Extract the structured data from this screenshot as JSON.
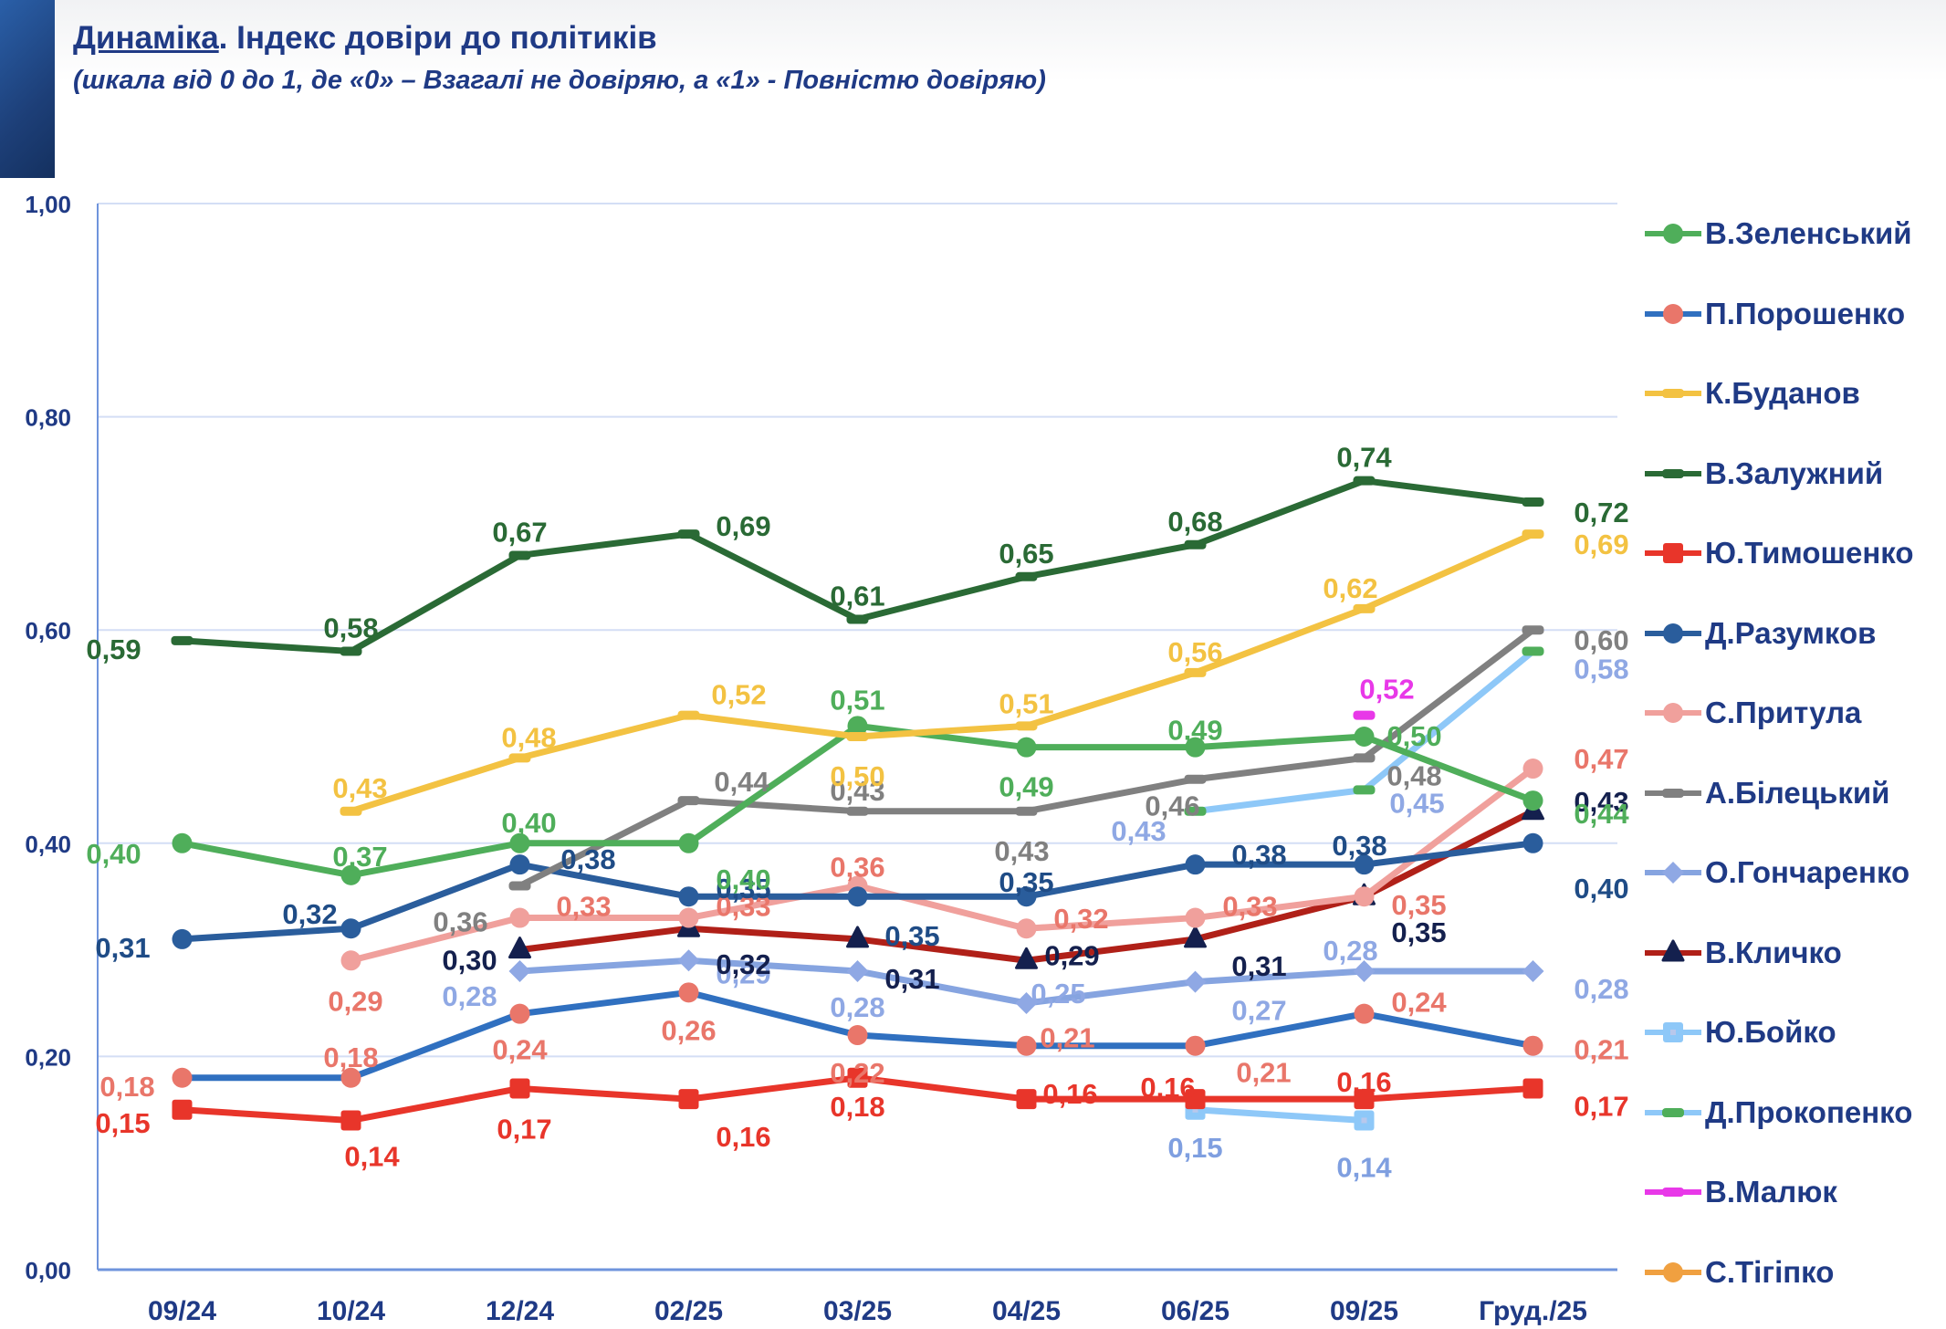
{
  "header": {
    "title_underlined": "Динаміка",
    "title_rest": ". Індекс довіри до політиків",
    "subtitle": "(шкала від 0 до 1, де «0» – Взагалі не довіряю, а «1» - Повністю довіряю)"
  },
  "chart_data": {
    "type": "line",
    "title": "Динаміка. Індекс довіри до політиків",
    "subtitle": "(шкала від 0 до 1, де «0» – Взагалі не довіряю, а «1» - Повністю довіряю)",
    "xlabel": "",
    "ylabel": "",
    "categories": [
      "09/24",
      "10/24",
      "12/24",
      "02/25",
      "03/25",
      "04/25",
      "06/25",
      "09/25",
      "Груд./25"
    ],
    "ylim": [
      0,
      1
    ],
    "yticks": [
      0,
      0.2,
      0.4,
      0.6,
      0.8,
      1.0
    ],
    "ytick_labels": [
      "0,00",
      "0,20",
      "0,40",
      "0,60",
      "0,80",
      "1,00"
    ],
    "grid": true,
    "legend_position": "right",
    "series": [
      {
        "name": "В.Зеленський",
        "line_color": "#4fae5a",
        "marker_color": "#4fae5a",
        "label_color": "#4fae5a",
        "marker": "circle",
        "values": [
          0.4,
          0.37,
          0.4,
          0.4,
          0.51,
          0.49,
          0.49,
          0.5,
          0.44
        ]
      },
      {
        "name": "П.Порошенко",
        "line_color": "#3070c0",
        "marker_color": "#e9766a",
        "label_color": "#e9766a",
        "marker": "circle",
        "values": [
          0.18,
          0.18,
          0.24,
          0.26,
          0.22,
          0.21,
          0.21,
          0.24,
          0.21
        ]
      },
      {
        "name": "К.Буданов",
        "line_color": "#f3c242",
        "marker_color": "#f3c242",
        "label_color": "#f3c242",
        "marker": "dash",
        "values": [
          null,
          0.43,
          0.48,
          0.52,
          0.5,
          0.51,
          0.56,
          0.62,
          0.69
        ]
      },
      {
        "name": "В.Залужний",
        "line_color": "#2a6a35",
        "marker_color": "#2a6a35",
        "label_color": "#2a6a35",
        "marker": "dash",
        "values": [
          0.59,
          0.58,
          0.67,
          0.69,
          0.61,
          0.65,
          0.68,
          0.74,
          0.72
        ]
      },
      {
        "name": "Ю.Тимошенко",
        "line_color": "#e8352a",
        "marker_color": "#e8352a",
        "label_color": "#e8352a",
        "marker": "square",
        "values": [
          0.15,
          0.14,
          0.17,
          0.16,
          0.18,
          0.16,
          0.16,
          0.16,
          0.17
        ]
      },
      {
        "name": "Д.Разумков",
        "line_color": "#2a5d9c",
        "marker_color": "#2a5d9c",
        "label_color": "#1f4c86",
        "marker": "circle",
        "values": [
          0.31,
          0.32,
          0.38,
          0.35,
          0.35,
          0.35,
          0.38,
          0.38,
          0.4
        ]
      },
      {
        "name": "С.Притула",
        "line_color": "#f0a09c",
        "marker_color": "#f0a09c",
        "label_color": "#e9766a",
        "marker": "circle",
        "values": [
          null,
          0.29,
          0.33,
          0.33,
          0.36,
          0.32,
          0.33,
          0.35,
          0.47
        ]
      },
      {
        "name": "А.Білецький",
        "line_color": "#808080",
        "marker_color": "#808080",
        "label_color": "#808080",
        "marker": "dash",
        "values": [
          null,
          null,
          0.36,
          0.44,
          0.43,
          0.43,
          0.46,
          0.48,
          0.6
        ]
      },
      {
        "name": "О.Гончаренко",
        "line_color": "#86a4e0",
        "marker_color": "#8fa8e4",
        "label_color": "#8fa8e4",
        "marker": "diamond",
        "values": [
          null,
          null,
          0.28,
          0.29,
          0.28,
          0.25,
          0.27,
          0.28,
          0.28
        ]
      },
      {
        "name": "В.Кличко",
        "line_color": "#b02018",
        "marker_color": "#14204e",
        "label_color": "#14204e",
        "marker": "triangle",
        "values": [
          null,
          null,
          0.3,
          0.32,
          0.31,
          0.29,
          0.31,
          0.35,
          0.43
        ]
      },
      {
        "name": "Ю.Бойко",
        "line_color": "#8ec8f8",
        "marker_color": "#8ec8f8",
        "label_color": "#7f9fe0",
        "marker": "square-light",
        "values": [
          null,
          null,
          null,
          null,
          null,
          null,
          0.15,
          0.14,
          null
        ]
      },
      {
        "name": "Д.Прокопенко",
        "line_color": "#8ec8f8",
        "marker_color": "#4fae5a",
        "label_color": "#8fa8e4",
        "marker": "dash",
        "values": [
          null,
          null,
          null,
          null,
          null,
          null,
          0.43,
          0.45,
          0.58
        ]
      },
      {
        "name": "В.Малюк",
        "line_color": "#e838e8",
        "marker_color": "#e838e8",
        "label_color": "#e838e8",
        "marker": "dash",
        "values": [
          null,
          null,
          null,
          null,
          null,
          null,
          null,
          0.52,
          null
        ]
      },
      {
        "name": "С.Тігіпко",
        "line_color": "#f0a040",
        "marker_color": "#f0a040",
        "label_color": "#f0a040",
        "marker": "circle",
        "values": [
          null,
          null,
          null,
          null,
          null,
          null,
          null,
          null,
          null
        ]
      }
    ]
  }
}
